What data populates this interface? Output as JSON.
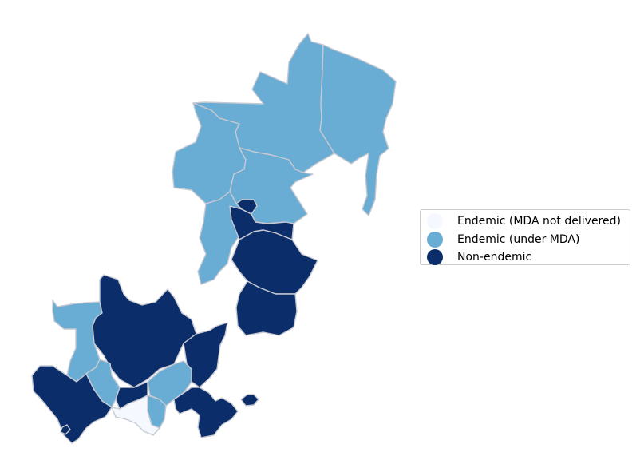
{
  "legend": {
    "items": [
      {
        "label": "Endemic (MDA not delivered)",
        "color": "#f5f9ff"
      },
      {
        "label": "Endemic (under MDA)",
        "color": "#69acd4"
      },
      {
        "label": "Non-endemic",
        "color": "#0b2d69"
      }
    ]
  },
  "map": {
    "border_color": "#c6c9d2",
    "districts": [
      {
        "name": "north-west-district",
        "category": 1
      },
      {
        "name": "north-central-district",
        "category": 1
      },
      {
        "name": "north-east-district",
        "category": 1
      },
      {
        "name": "west-district",
        "category": 1
      },
      {
        "name": "central-district",
        "category": 1
      },
      {
        "name": "south-west-strip-district",
        "category": 1
      },
      {
        "name": "central-north-dark-district",
        "category": 2
      },
      {
        "name": "central-east-dark-district",
        "category": 2
      },
      {
        "name": "central-south-dark-district",
        "category": 2
      },
      {
        "name": "south-cluster-west-light-district",
        "category": 1
      },
      {
        "name": "south-cluster-center-dark-district",
        "category": 2
      },
      {
        "name": "south-cluster-east-dark-district",
        "category": 2
      },
      {
        "name": "south-cluster-southeast-light-district",
        "category": 1
      },
      {
        "name": "south-coast-dark-district",
        "category": 2
      },
      {
        "name": "south-unserved-district",
        "category": 0
      },
      {
        "name": "south-island-dark-district",
        "category": 2
      }
    ]
  }
}
